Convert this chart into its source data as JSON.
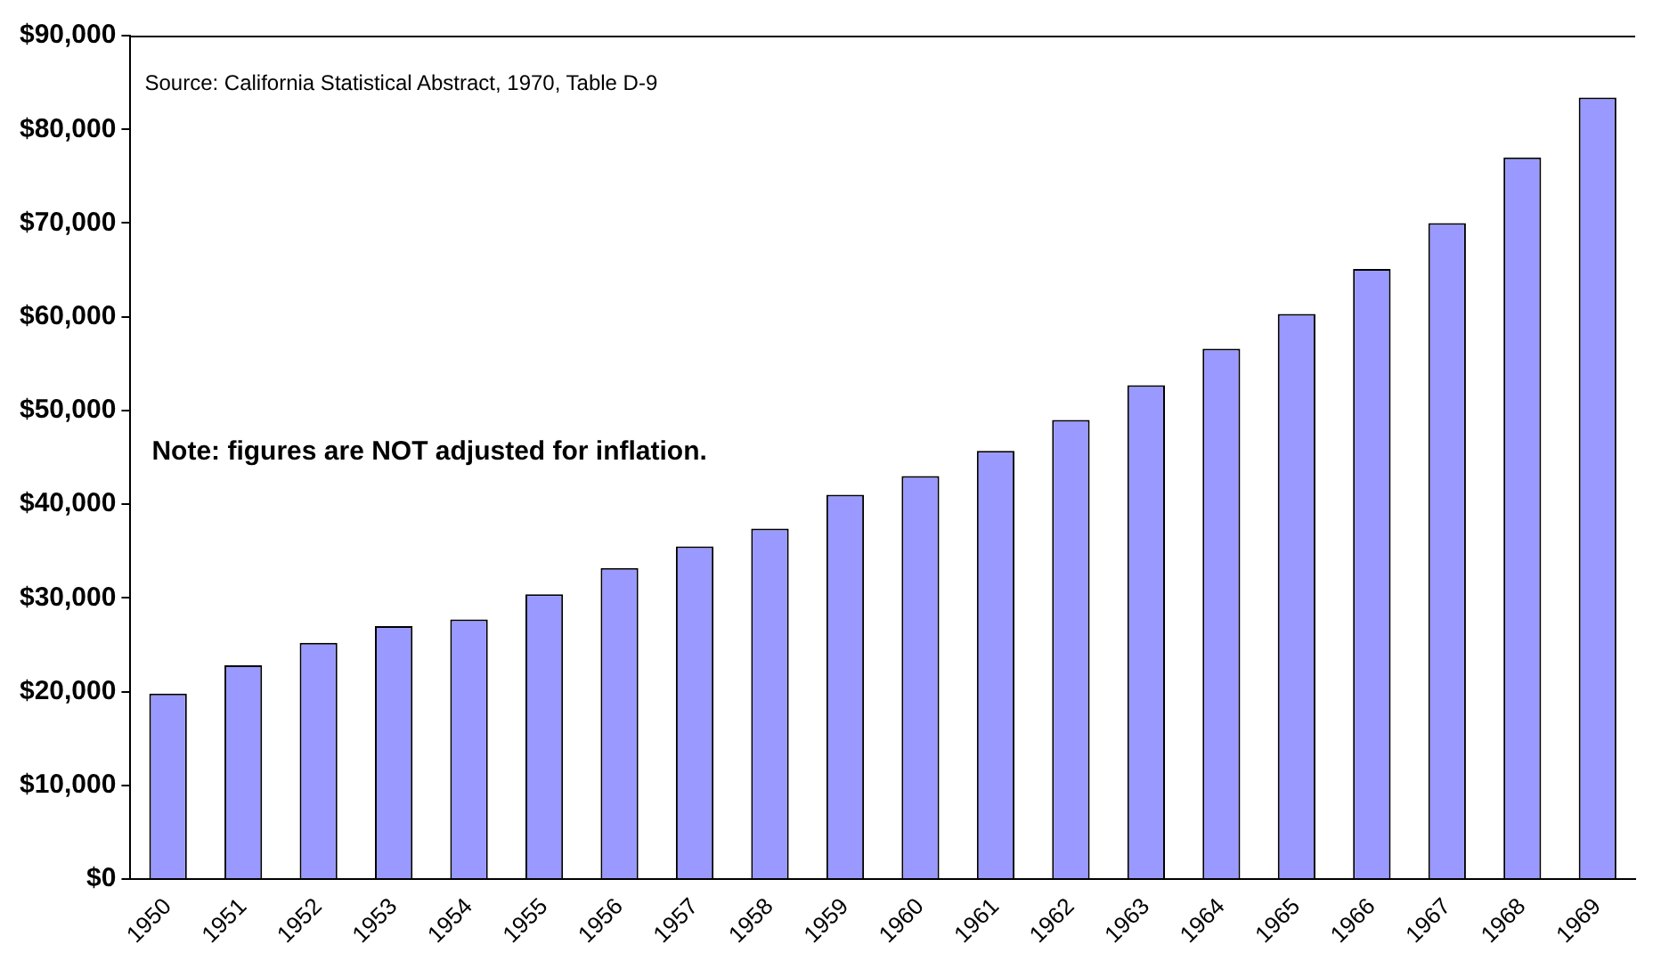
{
  "chart_data": {
    "type": "bar",
    "categories": [
      "1950",
      "1951",
      "1952",
      "1953",
      "1954",
      "1955",
      "1956",
      "1957",
      "1958",
      "1959",
      "1960",
      "1961",
      "1962",
      "1963",
      "1964",
      "1965",
      "1966",
      "1967",
      "1968",
      "1969"
    ],
    "values": [
      19800,
      22800,
      25200,
      27000,
      27700,
      30400,
      33200,
      35500,
      37400,
      41000,
      43000,
      45700,
      49000,
      52700,
      56600,
      60300,
      65100,
      70000,
      77000,
      83400
    ],
    "color": "#9999ff",
    "ylim": [
      0,
      90000
    ],
    "yticks": [
      {
        "value": 0,
        "label": "$0"
      },
      {
        "value": 10000,
        "label": "$10,000"
      },
      {
        "value": 20000,
        "label": "$20,000"
      },
      {
        "value": 30000,
        "label": "$30,000"
      },
      {
        "value": 40000,
        "label": "$40,000"
      },
      {
        "value": 50000,
        "label": "$50,000"
      },
      {
        "value": 60000,
        "label": "$60,000"
      },
      {
        "value": 70000,
        "label": "$70,000"
      },
      {
        "value": 80000,
        "label": "$80,000"
      },
      {
        "value": 90000,
        "label": "$90,000"
      }
    ],
    "grid": false,
    "legend": false,
    "annotations": [
      "Source: California Statistical Abstract, 1970, Table D-9",
      "Note: figures are NOT adjusted for inflation."
    ]
  }
}
